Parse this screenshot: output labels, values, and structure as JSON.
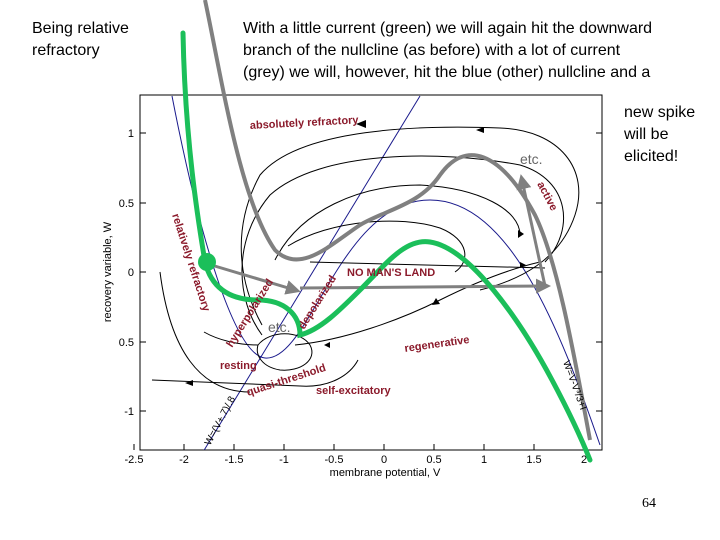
{
  "captions": {
    "left": "Being relative refractory",
    "top_lines": [
      "With a little current (green) we will again hit the downward",
      "branch of the nullcline (as before) with a lot of current",
      "(grey) we will, however, hit the blue (other) nullcline and a"
    ],
    "right": "new spike will be elicited!"
  },
  "axes": {
    "xlabel": "membrane potential, V",
    "ylabel": "recovery variable, W",
    "x_ticks": [
      "-2.5",
      "-2",
      "-1.5",
      "-1",
      "-0.5",
      "0",
      "0.5",
      "1",
      "1.5",
      "2"
    ],
    "y_ticks": [
      "1",
      "0.5",
      "0",
      "0.5",
      "-1"
    ]
  },
  "regions": {
    "absolutely_refractory": "absolutely refractory",
    "relatively_refractory": "relatively refractory",
    "active": "active",
    "hyperpolarized": "hyperpolarized",
    "depolarized": "depolarized",
    "no_mans_land": "NO MAN'S LAND",
    "regenerative": "regenerative",
    "resting": "resting",
    "quasi_threshold": "quasi-threshold",
    "self_excitatory": "self-excitatory"
  },
  "nullclines": {
    "w_nullcline": "W=(V+.7)/.8",
    "v_nullcline": "W=V-V³/3+I"
  },
  "annotations": {
    "etc_top": "etc.",
    "etc_bottom": "etc."
  },
  "colors": {
    "green_trajectory": "#1bbf5a",
    "grey_trajectory": "#808080",
    "nullcline": "#1a1a8c",
    "region_label": "#8b1a2b"
  },
  "page_number": "64"
}
